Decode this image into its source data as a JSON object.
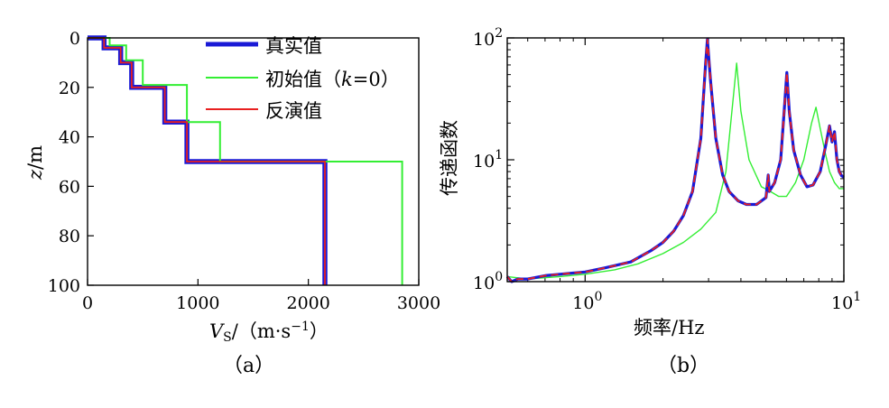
{
  "colors": {
    "true": "#1a1ad6",
    "initial": "#33ee33",
    "inverted": "#e82020"
  },
  "chart_data": [
    {
      "type": "line",
      "panel_label": "（a）",
      "xlabel_main": "V",
      "xlabel_sub": "S",
      "xlabel_unit": "/（m·s",
      "xlabel_exp": "−1",
      "xlabel_close": "）",
      "ylabel_main": "z",
      "ylabel_unit": "/m",
      "xlim": [
        0,
        3000
      ],
      "ylim": [
        0,
        100
      ],
      "y_inverted": true,
      "xticks": [
        "0",
        "1000",
        "2000",
        "3000"
      ],
      "yticks": [
        "0",
        "20",
        "40",
        "60",
        "80",
        "100"
      ],
      "legend": {
        "true": "真实值",
        "initial_pre": "初始值（",
        "initial_k": "k",
        "initial_post": "=0）",
        "inverted": "反演值"
      },
      "legend_position": "top-right",
      "series": [
        {
          "key": "true",
          "points": [
            [
              0,
              0
            ],
            [
              150,
              0
            ],
            [
              150,
              4
            ],
            [
              300,
              4
            ],
            [
              300,
              10
            ],
            [
              400,
              10
            ],
            [
              400,
              20
            ],
            [
              700,
              20
            ],
            [
              700,
              34
            ],
            [
              900,
              34
            ],
            [
              900,
              50
            ],
            [
              2150,
              50
            ],
            [
              2150,
              100
            ]
          ]
        },
        {
          "key": "initial",
          "points": [
            [
              0,
              0
            ],
            [
              200,
              0
            ],
            [
              200,
              3
            ],
            [
              350,
              3
            ],
            [
              350,
              9
            ],
            [
              500,
              9
            ],
            [
              500,
              19
            ],
            [
              900,
              19
            ],
            [
              900,
              34
            ],
            [
              1200,
              34
            ],
            [
              1200,
              50
            ],
            [
              2850,
              50
            ],
            [
              2850,
              100
            ]
          ]
        },
        {
          "key": "inverted",
          "points": [
            [
              0,
              0
            ],
            [
              150,
              0
            ],
            [
              150,
              4
            ],
            [
              300,
              4
            ],
            [
              300,
              10
            ],
            [
              400,
              10
            ],
            [
              400,
              20
            ],
            [
              700,
              20
            ],
            [
              700,
              34
            ],
            [
              900,
              34
            ],
            [
              900,
              50
            ],
            [
              2150,
              50
            ],
            [
              2150,
              100
            ]
          ]
        }
      ]
    },
    {
      "type": "line",
      "panel_label": "（b）",
      "xlabel": "频率/Hz",
      "ylabel": "传递函数",
      "xscale": "log",
      "yscale": "log",
      "xlim": [
        0.5,
        10
      ],
      "ylim": [
        1,
        100
      ],
      "xticks": [
        {
          "base": "10",
          "exp": "0"
        },
        {
          "base": "10",
          "exp": "1"
        }
      ],
      "yticks": [
        {
          "base": "10",
          "exp": "0"
        },
        {
          "base": "10",
          "exp": "1"
        },
        {
          "base": "10",
          "exp": "2"
        }
      ],
      "series": [
        {
          "key": "initial",
          "points": [
            [
              0.5,
              1.1
            ],
            [
              0.6,
              1.05
            ],
            [
              0.8,
              1.1
            ],
            [
              1.0,
              1.15
            ],
            [
              1.3,
              1.25
            ],
            [
              1.6,
              1.4
            ],
            [
              2.0,
              1.7
            ],
            [
              2.4,
              2.1
            ],
            [
              2.8,
              2.7
            ],
            [
              3.2,
              3.7
            ],
            [
              3.5,
              8
            ],
            [
              3.75,
              35
            ],
            [
              3.85,
              62
            ],
            [
              4.0,
              25
            ],
            [
              4.3,
              10
            ],
            [
              4.8,
              6
            ],
            [
              5.2,
              5.5
            ],
            [
              5.6,
              5.0
            ],
            [
              6.0,
              5.0
            ],
            [
              6.5,
              6.5
            ],
            [
              7.0,
              10
            ],
            [
              7.5,
              20
            ],
            [
              7.8,
              27
            ],
            [
              8.1,
              18
            ],
            [
              8.5,
              11
            ],
            [
              8.8,
              8
            ],
            [
              9.2,
              6.5
            ],
            [
              9.6,
              5.8
            ],
            [
              10,
              5.8
            ]
          ]
        },
        {
          "key": "true",
          "points": [
            [
              0.5,
              1.1
            ],
            [
              0.52,
              1.0
            ],
            [
              0.55,
              1.05
            ],
            [
              0.6,
              1.05
            ],
            [
              0.7,
              1.12
            ],
            [
              0.8,
              1.15
            ],
            [
              1.0,
              1.2
            ],
            [
              1.2,
              1.3
            ],
            [
              1.5,
              1.45
            ],
            [
              1.8,
              1.8
            ],
            [
              2.0,
              2.1
            ],
            [
              2.2,
              2.6
            ],
            [
              2.4,
              3.5
            ],
            [
              2.6,
              5.5
            ],
            [
              2.8,
              15
            ],
            [
              2.92,
              60
            ],
            [
              2.97,
              97
            ],
            [
              3.05,
              45
            ],
            [
              3.2,
              15
            ],
            [
              3.4,
              7.5
            ],
            [
              3.6,
              5.5
            ],
            [
              3.9,
              4.6
            ],
            [
              4.2,
              4.3
            ],
            [
              4.6,
              4.3
            ],
            [
              5.0,
              4.9
            ],
            [
              5.1,
              7.5
            ],
            [
              5.15,
              5.5
            ],
            [
              5.4,
              6.5
            ],
            [
              5.7,
              10
            ],
            [
              5.9,
              28
            ],
            [
              6.02,
              52
            ],
            [
              6.15,
              25
            ],
            [
              6.4,
              12
            ],
            [
              6.8,
              7.5
            ],
            [
              7.2,
              6.0
            ],
            [
              7.6,
              6.2
            ],
            [
              8.1,
              8
            ],
            [
              8.5,
              13
            ],
            [
              8.8,
              19
            ],
            [
              9.0,
              14
            ],
            [
              9.2,
              17
            ],
            [
              9.4,
              10
            ],
            [
              9.6,
              8
            ],
            [
              9.8,
              7.4
            ],
            [
              10,
              7.2
            ]
          ]
        },
        {
          "key": "inverted",
          "points": [
            [
              0.5,
              1.1
            ],
            [
              0.52,
              1.0
            ],
            [
              0.55,
              1.05
            ],
            [
              0.6,
              1.05
            ],
            [
              0.7,
              1.12
            ],
            [
              0.8,
              1.15
            ],
            [
              1.0,
              1.2
            ],
            [
              1.2,
              1.3
            ],
            [
              1.5,
              1.45
            ],
            [
              1.8,
              1.8
            ],
            [
              2.0,
              2.1
            ],
            [
              2.2,
              2.6
            ],
            [
              2.4,
              3.5
            ],
            [
              2.6,
              5.5
            ],
            [
              2.8,
              15
            ],
            [
              2.92,
              60
            ],
            [
              2.97,
              97
            ],
            [
              3.05,
              45
            ],
            [
              3.2,
              15
            ],
            [
              3.4,
              7.5
            ],
            [
              3.6,
              5.5
            ],
            [
              3.9,
              4.6
            ],
            [
              4.2,
              4.3
            ],
            [
              4.6,
              4.3
            ],
            [
              5.0,
              4.9
            ],
            [
              5.1,
              7.5
            ],
            [
              5.15,
              5.5
            ],
            [
              5.4,
              6.5
            ],
            [
              5.7,
              10
            ],
            [
              5.9,
              28
            ],
            [
              6.02,
              52
            ],
            [
              6.15,
              25
            ],
            [
              6.4,
              12
            ],
            [
              6.8,
              7.5
            ],
            [
              7.2,
              6.0
            ],
            [
              7.6,
              6.2
            ],
            [
              8.1,
              8
            ],
            [
              8.5,
              13
            ],
            [
              8.8,
              19
            ],
            [
              9.0,
              14
            ],
            [
              9.2,
              17
            ],
            [
              9.4,
              10
            ],
            [
              9.6,
              8
            ],
            [
              9.8,
              7.4
            ],
            [
              10,
              7.2
            ]
          ]
        }
      ]
    }
  ]
}
